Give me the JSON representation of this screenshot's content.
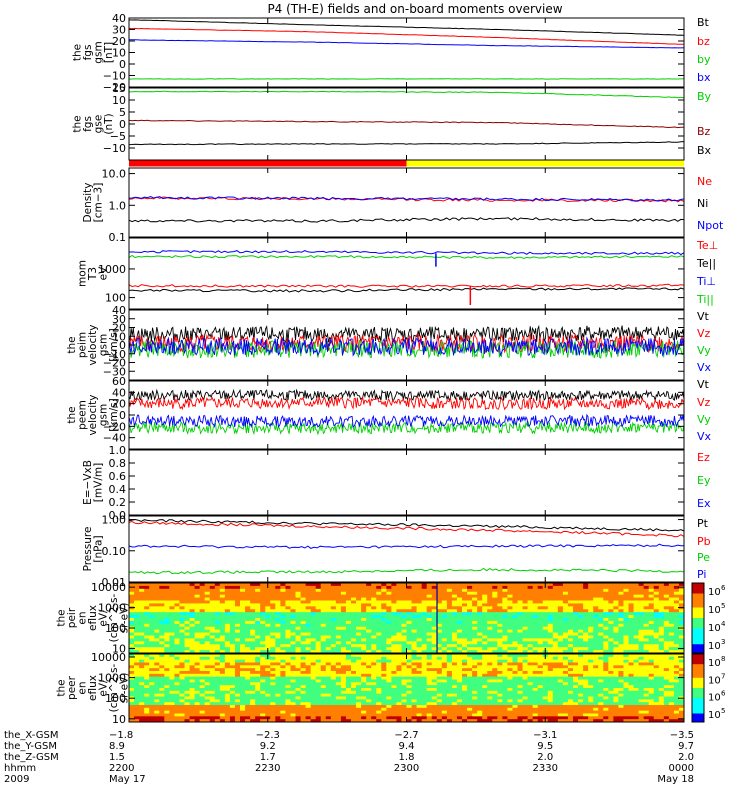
{
  "title": "P4 (TH-E) fields and on-board moments overview",
  "colors": {
    "black": "#000000",
    "red": "#ff0000",
    "green": "#00d000",
    "blue": "#0000ff",
    "yellow": "#ffff00"
  },
  "chart_data": [
    {
      "type": "line",
      "id": "fgs_gsm",
      "ylabel": [
        "the",
        "fgs",
        "gsm",
        "[nT]"
      ],
      "ylim": [
        -20,
        40
      ],
      "ticks": [
        -20,
        -10,
        0,
        10,
        20,
        30,
        40
      ],
      "tick_labels": [
        "−20",
        "−10",
        "0",
        "10",
        "20",
        "30",
        "40"
      ],
      "series": [
        {
          "name": "Bt",
          "color": "#000000",
          "values": [
            38.5,
            34,
            30,
            25
          ]
        },
        {
          "name": "bz",
          "color": "#ff0000",
          "values": [
            31,
            28,
            23,
            17
          ]
        },
        {
          "name": "by",
          "color": "#00d000",
          "values": [
            -13,
            -13,
            -13,
            -13
          ]
        },
        {
          "name": "bx",
          "color": "#0000ff",
          "values": [
            21,
            19,
            16,
            14
          ]
        }
      ]
    },
    {
      "type": "line",
      "id": "fgs_gse",
      "ylabel": [
        "the",
        "fgs",
        "gse",
        "(nT)"
      ],
      "ylim": [
        -15,
        15
      ],
      "ticks": [
        -10,
        -5,
        0,
        5,
        10,
        15
      ],
      "tick_labels": [
        "−10",
        "−5",
        "0",
        "5",
        "10",
        "15"
      ],
      "series": [
        {
          "name": "By",
          "color": "#00d000",
          "values": [
            13.5,
            13.5,
            13.2,
            11
          ]
        },
        {
          "name": "Bz",
          "color": "#8b0000",
          "values": [
            1.5,
            1.0,
            0.6,
            -1.5
          ]
        },
        {
          "name": "Bx",
          "color": "#000000",
          "values": [
            -8.5,
            -8.3,
            -8.3,
            -7.5
          ]
        }
      ]
    },
    {
      "type": "bar",
      "id": "mode_bar",
      "series": [
        {
          "name": "red",
          "color": "#ff0000",
          "x": [
            0,
            0.5
          ]
        },
        {
          "name": "yellow",
          "color": "#ffff00",
          "x": [
            0.5,
            1
          ]
        }
      ]
    },
    {
      "type": "line",
      "id": "density",
      "ylabel": [
        "Density",
        "[cm−3]"
      ],
      "scale": "log",
      "ylim": [
        0.1,
        15
      ],
      "ticks": [
        0.1,
        1.0,
        10.0
      ],
      "tick_labels": [
        "0.1",
        "1.0",
        "10.0"
      ],
      "series": [
        {
          "name": "Ne",
          "color": "#ff0000",
          "values": [
            1.7,
            1.6,
            1.45,
            1.4
          ]
        },
        {
          "name": "Ni",
          "color": "#000000",
          "values": [
            0.33,
            0.32,
            0.38,
            0.33
          ]
        },
        {
          "name": "Npot",
          "color": "#0000ff",
          "values": [
            1.75,
            1.65,
            1.55,
            1.45
          ]
        }
      ]
    },
    {
      "type": "line",
      "id": "temperature",
      "ylabel": [
        "mom",
        "T3",
        "eV"
      ],
      "scale": "log",
      "ylim": [
        40,
        12000
      ],
      "ticks": [
        100,
        1000
      ],
      "tick_labels": [
        "100",
        "1000"
      ],
      "series": [
        {
          "name": "Te⊥",
          "color": "#ff0000",
          "values": [
            260,
            250,
            250,
            270
          ]
        },
        {
          "name": "Te||",
          "color": "#000000",
          "values": [
            180,
            170,
            200,
            200
          ]
        },
        {
          "name": "Ti⊥",
          "color": "#0000ff",
          "values": [
            4000,
            4000,
            3500,
            3500
          ]
        },
        {
          "name": "Ti||",
          "color": "#00d000",
          "values": [
            2700,
            2700,
            2500,
            2700
          ]
        }
      ]
    },
    {
      "type": "line",
      "id": "peim_velocity",
      "ylabel": [
        "the",
        "peim",
        "velocity",
        "gsm",
        "[km/s]"
      ],
      "ylim": [
        -40,
        40
      ],
      "ticks": [
        -30,
        -20,
        -10,
        0,
        10,
        20,
        30,
        40
      ],
      "tick_labels": [
        "−30",
        "−20",
        "−10",
        "0",
        "10",
        "20",
        "30",
        "40"
      ],
      "series": [
        {
          "name": "Vt",
          "color": "#000000",
          "values": [
            12,
            12,
            12,
            14
          ]
        },
        {
          "name": "Vz",
          "color": "#ff0000",
          "values": [
            2,
            2,
            2,
            2
          ]
        },
        {
          "name": "Vy",
          "color": "#00d000",
          "values": [
            -5,
            -5,
            -5,
            -5
          ]
        },
        {
          "name": "Vx",
          "color": "#0000ff",
          "values": [
            -2,
            -2,
            -2,
            -2
          ]
        }
      ]
    },
    {
      "type": "line",
      "id": "peem_velocity",
      "ylabel": [
        "the",
        "peem",
        "velocity",
        "gsm",
        "[km/s]"
      ],
      "ylim": [
        -60,
        60
      ],
      "ticks": [
        -40,
        -20,
        0,
        20,
        40,
        60
      ],
      "tick_labels": [
        "−40",
        "−20",
        "0",
        "20",
        "40",
        "60"
      ],
      "series": [
        {
          "name": "Vt",
          "color": "#000000",
          "values": [
            35,
            35,
            34,
            35
          ]
        },
        {
          "name": "Vz",
          "color": "#ff0000",
          "values": [
            20,
            22,
            20,
            20
          ]
        },
        {
          "name": "Vy",
          "color": "#00d000",
          "values": [
            -22,
            -24,
            -22,
            -22
          ]
        },
        {
          "name": "Vx",
          "color": "#0000ff",
          "values": [
            -10,
            -12,
            -10,
            -10
          ]
        }
      ]
    },
    {
      "type": "line",
      "id": "efield",
      "ylabel": [
        "E=−VxB",
        "[mV/m]"
      ],
      "ylim": [
        0,
        1
      ],
      "ticks": [
        0,
        0.2,
        0.4,
        0.6,
        0.8,
        1.0
      ],
      "tick_labels": [
        "0.0",
        "0.2",
        "0.4",
        "0.6",
        "0.8",
        "1.0"
      ],
      "series": [
        {
          "name": "Ez",
          "color": "#ff0000",
          "values": []
        },
        {
          "name": "Ey",
          "color": "#00d000",
          "values": []
        },
        {
          "name": "Ex",
          "color": "#0000ff",
          "values": []
        }
      ]
    },
    {
      "type": "line",
      "id": "pressure",
      "ylabel": [
        "Pressure",
        "[nPa]"
      ],
      "scale": "log",
      "ylim": [
        0.01,
        1.3
      ],
      "ticks": [
        0.01,
        0.1,
        1.0
      ],
      "tick_labels": [
        "0.01",
        "0.10",
        "1.00"
      ],
      "series": [
        {
          "name": "Pt",
          "color": "#000000",
          "values": [
            0.95,
            0.75,
            0.6,
            0.45
          ]
        },
        {
          "name": "Pb",
          "color": "#ff0000",
          "values": [
            0.8,
            0.6,
            0.45,
            0.3
          ]
        },
        {
          "name": "Pe",
          "color": "#00d000",
          "values": [
            0.02,
            0.021,
            0.025,
            0.022
          ]
        },
        {
          "name": "Pi",
          "color": "#0000ff",
          "values": [
            0.14,
            0.13,
            0.14,
            0.15
          ]
        }
      ]
    },
    {
      "type": "heatmap",
      "id": "peir_spectrogram",
      "ylabel": [
        "the",
        "peir",
        "en",
        "eflux",
        "eV/",
        "(cm^2-s-",
        "sr-eV)"
      ],
      "scale": "log",
      "ylim": [
        6,
        16000
      ],
      "ticks": [
        10,
        100,
        1000,
        10000
      ],
      "tick_labels": [
        "10",
        "100",
        "1000",
        "10000"
      ],
      "colorbar": {
        "ticks": [
          "10",
          "10",
          "10",
          "10"
        ],
        "exp": [
          "6",
          "5",
          "4",
          "3"
        ]
      }
    },
    {
      "type": "heatmap",
      "id": "peer_spectrogram",
      "ylabel": [
        "the",
        "peer",
        "en",
        "eflux",
        "eV/",
        "(cm^2-s-",
        "sr-eV)"
      ],
      "scale": "log",
      "ylim": [
        7,
        14000
      ],
      "ticks": [
        10,
        100,
        1000,
        10000
      ],
      "tick_labels": [
        "10",
        "100",
        "1000",
        "10000"
      ],
      "colorbar": {
        "ticks": [
          "10",
          "10",
          "10",
          "10"
        ],
        "exp": [
          "8",
          "7",
          "6",
          "5"
        ]
      }
    }
  ],
  "xaxis": {
    "ticks": [
      0,
      0.25,
      0.5,
      0.75,
      1.0
    ],
    "rows": [
      {
        "label": "the_X-GSM",
        "values": [
          "−1.8",
          "−2.3",
          "−2.7",
          "−3.1",
          "−3.5"
        ]
      },
      {
        "label": "the_Y-GSM",
        "values": [
          "8.9",
          "9.2",
          "9.4",
          "9.5",
          "9.7"
        ]
      },
      {
        "label": "the_Z-GSM",
        "values": [
          "1.5",
          "1.7",
          "1.8",
          "2.0",
          "2.0"
        ]
      },
      {
        "label": "hhmm",
        "values": [
          "2200",
          "2230",
          "2300",
          "2330",
          "0000"
        ]
      }
    ],
    "year": "2009",
    "date_start": "May 17",
    "date_end": "May 18"
  }
}
